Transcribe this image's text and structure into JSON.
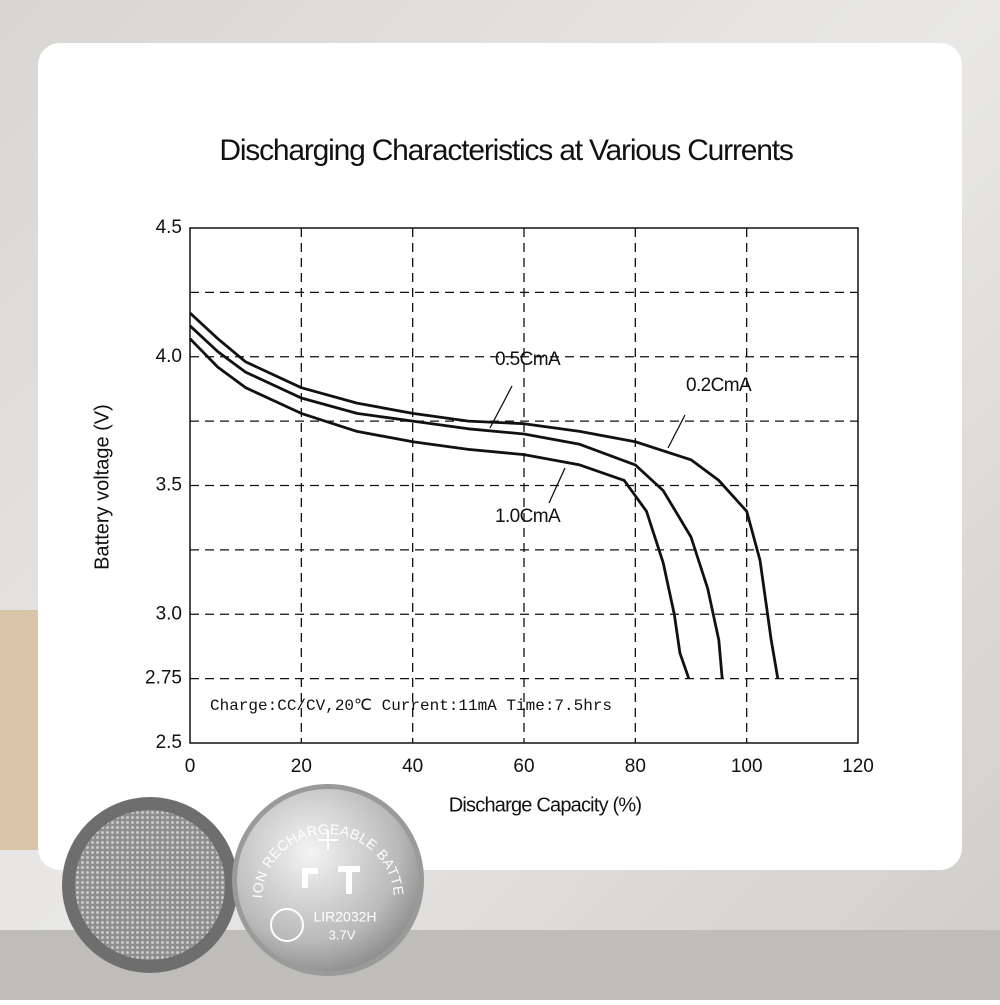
{
  "chart_data": {
    "type": "line",
    "title": "Discharging Characteristics at Various Currents",
    "x_label": "Discharge Capacity (%)",
    "y_label": "Battery voltage (V)",
    "xlim": [
      0,
      120
    ],
    "ylim": [
      2.5,
      4.5
    ],
    "xticks": [
      0,
      20,
      40,
      60,
      80,
      100,
      120
    ],
    "yticks": [
      2.5,
      2.75,
      {
        "value": 3,
        "label": "3.0"
      },
      3.5,
      {
        "value": 4,
        "label": "4.0"
      },
      4.5
    ],
    "xgrid": [
      20,
      40,
      60,
      80,
      100
    ],
    "ygrid": [
      2.75,
      3,
      3.25,
      3.5,
      3.75,
      4,
      4.25
    ],
    "grid": true,
    "series": [
      {
        "name": "0.2CmA",
        "color": "#111111",
        "x": [
          0,
          5,
          10,
          20,
          30,
          40,
          50,
          60,
          70,
          80,
          90,
          95,
          100,
          102.4,
          104.4,
          105.6
        ],
        "values": [
          4.17,
          4.07,
          3.98,
          3.88,
          3.82,
          3.78,
          3.75,
          3.74,
          3.71,
          3.67,
          3.6,
          3.52,
          3.4,
          3.21,
          2.9,
          2.75
        ]
      },
      {
        "name": "0.5CmA",
        "color": "#111111",
        "x": [
          0,
          5,
          10,
          20,
          30,
          40,
          50,
          60,
          70,
          80,
          85,
          90,
          93,
          95,
          95.6
        ],
        "values": [
          4.12,
          4.02,
          3.94,
          3.84,
          3.78,
          3.75,
          3.72,
          3.7,
          3.66,
          3.58,
          3.48,
          3.3,
          3.1,
          2.9,
          2.75
        ]
      },
      {
        "name": "1.0CmA",
        "color": "#111111",
        "x": [
          0,
          5,
          10,
          20,
          30,
          40,
          50,
          60,
          70,
          78,
          82,
          85,
          87,
          88,
          89.6
        ],
        "values": [
          4.07,
          3.96,
          3.88,
          3.78,
          3.71,
          3.67,
          3.64,
          3.62,
          3.58,
          3.52,
          3.4,
          3.2,
          3.0,
          2.85,
          2.75
        ]
      }
    ],
    "note": "Charge:CC/CV,20℃ Current:11mA Time:7.5hrs"
  },
  "product": {
    "ring_text": "LI-ION RECHARGEABLE BATTERY",
    "model": "LIR2032H",
    "voltage": "3.7V"
  }
}
